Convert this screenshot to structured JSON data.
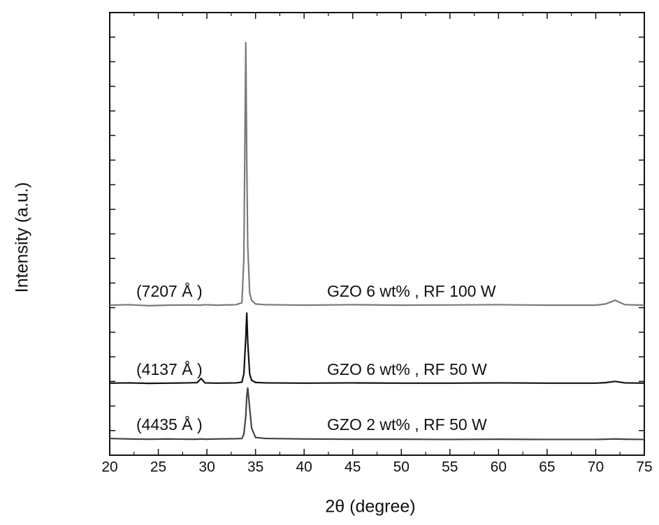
{
  "chart_data": {
    "type": "line",
    "xlabel": "2θ (degree)",
    "ylabel": "Intensity (a.u.)",
    "xlim": [
      20,
      75
    ],
    "xticks": [
      20,
      25,
      30,
      35,
      40,
      45,
      50,
      55,
      60,
      65,
      70,
      75
    ],
    "ylim": [
      0,
      18
    ],
    "x": [
      20,
      22,
      24,
      26,
      28,
      29,
      29.4,
      29.8,
      31,
      33,
      33.6,
      33.8,
      34,
      34.1,
      34.2,
      34.4,
      34.6,
      35,
      36,
      40,
      45,
      50,
      55,
      60,
      65,
      70,
      71,
      72,
      73,
      75
    ],
    "series": [
      {
        "name": "GZO 6 wt% , RF 100 W",
        "color": "#7a7a7a",
        "values": [
          6.1,
          6.12,
          6.08,
          6.1,
          6.11,
          6.1,
          6.1,
          6.12,
          6.1,
          6.12,
          6.2,
          8.0,
          16.8,
          12.0,
          8.5,
          6.6,
          6.3,
          6.15,
          6.12,
          6.1,
          6.12,
          6.1,
          6.11,
          6.12,
          6.1,
          6.1,
          6.15,
          6.3,
          6.12,
          6.1
        ]
      },
      {
        "name": "GZO 6 wt% , RF 50 W",
        "color": "#111111",
        "values": [
          2.93,
          2.94,
          2.92,
          2.93,
          2.94,
          2.95,
          3.12,
          2.94,
          2.93,
          2.94,
          2.97,
          3.3,
          4.8,
          5.8,
          4.6,
          3.3,
          3.05,
          2.96,
          2.94,
          2.93,
          2.94,
          2.93,
          2.93,
          2.94,
          2.93,
          2.93,
          2.95,
          3.0,
          2.94,
          2.93
        ]
      },
      {
        "name": "GZO 2 wt% , RF 50 W",
        "color": "#444444",
        "values": [
          0.68,
          0.66,
          0.65,
          0.66,
          0.65,
          0.65,
          0.66,
          0.65,
          0.66,
          0.67,
          0.68,
          0.85,
          1.6,
          2.4,
          2.75,
          1.9,
          1.1,
          0.72,
          0.68,
          0.66,
          0.65,
          0.65,
          0.64,
          0.65,
          0.64,
          0.64,
          0.65,
          0.66,
          0.65,
          0.64
        ]
      }
    ],
    "annotations": [
      "(7207 Å )",
      "(4137 Å )",
      "(4435 Å )"
    ]
  }
}
